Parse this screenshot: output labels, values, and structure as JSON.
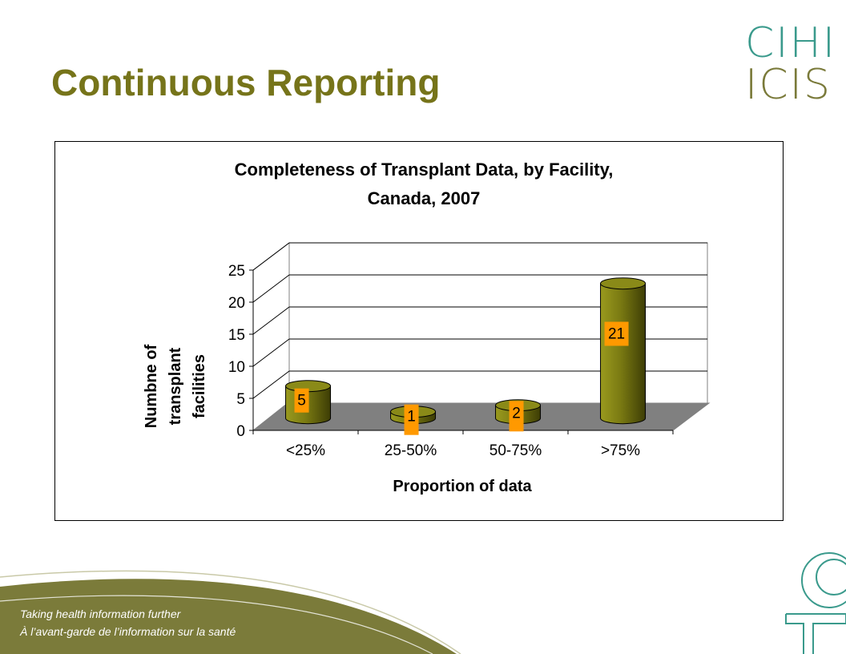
{
  "slide": {
    "title": "Continuous Reporting",
    "logo_line1": "CIHI",
    "logo_line2": "ICIS",
    "footer_line1": "Taking health information further",
    "footer_line2": "À l’avant-garde de l’information sur la santé"
  },
  "colors": {
    "title": "#76741a",
    "bar": "#7a7a12",
    "floor": "#808080",
    "label_bg": "#ff9900",
    "footer": "#7b7b3a"
  },
  "chart_data": {
    "type": "bar",
    "title_line1": "Completeness of Transplant Data, by Facility,",
    "title_line2": "Canada, 2007",
    "categories": [
      "<25%",
      "25-50%",
      "50-75%",
      ">75%"
    ],
    "values": [
      5,
      1,
      2,
      21
    ],
    "data_labels": [
      "5",
      "1",
      "2",
      "21"
    ],
    "xlabel": "Proportion of data",
    "ylabel_lines": [
      "Numbne of",
      "transplant",
      "facilities"
    ],
    "ylim": [
      0,
      25
    ],
    "yticks": [
      "0",
      "5",
      "10",
      "15",
      "20",
      "25"
    ],
    "grid": true,
    "style": "3d-cylinder"
  }
}
